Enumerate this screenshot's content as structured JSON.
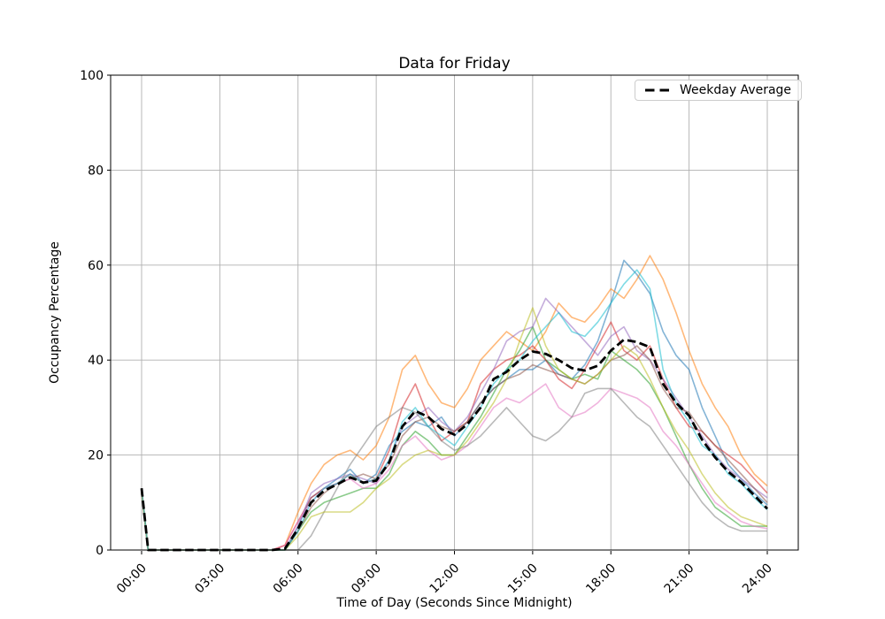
{
  "figure": {
    "title": "Data for Friday",
    "background": "#ffffff"
  },
  "legend": {
    "label": "Weekday Average",
    "position": "upper right"
  },
  "chart_data": {
    "type": "line",
    "title": "Data for Friday",
    "xlabel": "Time of Day (Seconds Since Midnight)",
    "ylabel": "Occupancy Percentage",
    "grid": true,
    "x_hours": [
      0,
      0.25,
      0.5,
      1,
      1.5,
      2,
      2.5,
      3,
      3.5,
      4,
      4.5,
      5,
      5.5,
      6,
      6.5,
      7,
      7.5,
      8,
      8.5,
      9,
      9.5,
      10,
      10.5,
      11,
      11.5,
      12,
      12.5,
      13,
      13.5,
      14,
      14.5,
      15,
      15.5,
      16,
      16.5,
      17,
      17.5,
      18,
      18.5,
      19,
      19.5,
      20,
      20.5,
      21,
      21.5,
      22,
      22.5,
      23,
      23.5,
      24
    ],
    "x_axis": {
      "label": "Time of Day (Seconds Since Midnight)",
      "tick_hours": [
        0,
        3,
        6,
        9,
        12,
        15,
        18,
        21,
        24
      ],
      "tick_labels": [
        "00:00",
        "03:00",
        "06:00",
        "09:00",
        "12:00",
        "15:00",
        "18:00",
        "21:00",
        "24:00"
      ]
    },
    "y_axis": {
      "label": "Occupancy Percentage",
      "range": [
        0,
        100
      ],
      "ticks": [
        0,
        20,
        40,
        60,
        80,
        100
      ],
      "tick_labels": [
        "0",
        "20",
        "40",
        "60",
        "80",
        "100"
      ]
    },
    "style": {
      "grid_color": "#b0b0b0",
      "spine_color": "#000000",
      "series_opacity": 0.55,
      "series_width": 1.6,
      "average_color": "#000000",
      "average_width": 2.8,
      "average_dash": "9.5 4.5"
    },
    "series": [
      {
        "id": "blue",
        "color": "#1f77b4",
        "values": [
          12,
          0,
          0,
          0,
          0,
          0,
          0,
          0,
          0,
          0,
          0,
          0,
          0,
          5,
          11,
          13,
          15,
          17,
          14,
          16,
          22,
          25,
          27,
          26,
          28,
          24,
          27,
          31,
          34,
          36,
          38,
          38,
          40,
          37,
          36,
          39,
          44,
          52,
          61,
          58,
          54,
          46,
          41,
          38,
          30,
          24,
          18,
          15,
          12,
          9.5
        ]
      },
      {
        "id": "orange",
        "color": "#ff7f0e",
        "values": [
          13,
          0,
          0,
          0,
          0,
          0,
          0,
          0,
          0,
          0,
          0,
          0,
          1,
          8,
          14,
          18,
          20,
          21,
          19,
          22,
          28,
          38,
          41,
          35,
          31,
          30,
          34,
          40,
          43,
          46,
          44,
          42,
          46,
          52,
          49,
          48,
          51,
          55,
          53,
          57,
          62,
          57,
          50,
          42,
          35,
          30,
          26,
          20,
          16,
          13.5
        ]
      },
      {
        "id": "green",
        "color": "#2ca02c",
        "values": [
          12,
          0,
          0,
          0,
          0,
          0,
          0,
          0,
          0,
          0,
          0,
          0,
          0,
          4,
          8,
          10,
          11,
          12,
          13,
          13,
          16,
          22,
          25,
          23,
          20,
          20,
          24,
          28,
          33,
          38,
          42,
          47,
          40,
          38,
          36,
          37,
          36,
          42,
          40,
          38,
          35,
          30,
          24,
          18,
          13,
          9,
          7,
          5,
          5,
          5
        ]
      },
      {
        "id": "red",
        "color": "#d62728",
        "values": [
          13,
          0,
          0,
          0,
          0,
          0,
          0,
          0,
          0,
          0,
          0,
          0,
          1,
          6,
          11,
          13,
          14,
          16,
          14,
          15,
          21,
          30,
          35,
          28,
          23,
          25,
          27,
          35,
          38,
          40,
          41,
          43,
          40,
          36,
          34,
          38,
          43,
          48,
          42,
          40,
          43,
          36,
          30,
          26,
          25,
          22,
          20,
          18,
          15,
          12
        ]
      },
      {
        "id": "purple",
        "color": "#9467bd",
        "values": [
          12,
          0,
          0,
          0,
          0,
          0,
          0,
          0,
          0,
          0,
          0,
          0,
          0,
          5,
          12,
          14,
          15,
          16,
          15,
          14,
          19,
          26,
          28,
          30,
          27,
          25,
          28,
          33,
          38,
          44,
          46,
          47,
          53,
          50,
          47,
          44,
          41,
          45,
          47,
          42,
          40,
          36,
          32,
          28,
          24,
          20,
          17,
          15,
          13,
          11
        ]
      },
      {
        "id": "brown",
        "color": "#8c564b",
        "values": [
          12,
          0,
          0,
          0,
          0,
          0,
          0,
          0,
          0,
          0,
          0,
          0,
          0,
          4,
          9,
          12,
          14,
          15,
          16,
          15,
          18,
          24,
          27,
          28,
          26,
          25,
          27,
          31,
          34,
          36,
          37,
          39,
          38,
          37,
          36,
          35,
          37,
          40,
          41,
          43,
          40,
          34,
          30,
          29,
          25,
          22,
          19,
          16,
          13,
          10
        ]
      },
      {
        "id": "pink",
        "color": "#e377c2",
        "values": [
          12,
          0,
          0,
          0,
          0,
          0,
          0,
          0,
          0,
          0,
          0,
          0,
          1,
          6,
          10,
          13,
          14,
          15,
          13,
          14,
          17,
          22,
          24,
          21,
          19,
          20,
          22,
          26,
          30,
          32,
          31,
          33,
          35,
          30,
          28,
          29,
          31,
          34,
          33,
          32,
          30,
          25,
          22,
          18,
          14,
          10,
          8,
          6,
          5,
          4.5
        ]
      },
      {
        "id": "gray",
        "color": "#7f7f7f",
        "values": [
          13,
          0,
          0,
          0,
          0,
          0,
          0,
          0,
          0,
          0,
          0,
          0,
          0,
          0,
          3,
          8,
          13,
          18,
          22,
          26,
          28,
          30,
          29,
          26,
          23,
          21,
          22,
          24,
          27,
          30,
          27,
          24,
          23,
          25,
          28,
          33,
          34,
          34,
          31,
          28,
          26,
          22,
          18,
          14,
          10,
          7,
          5,
          4,
          4,
          4
        ]
      },
      {
        "id": "olive",
        "color": "#bcbd22",
        "values": [
          12,
          0,
          0,
          0,
          0,
          0,
          0,
          0,
          0,
          0,
          0,
          0,
          0,
          3,
          7,
          8,
          8,
          8,
          10,
          13,
          15,
          18,
          20,
          21,
          20,
          20,
          23,
          27,
          31,
          36,
          44,
          51,
          43,
          38,
          36,
          35,
          37,
          40,
          43,
          41,
          36,
          30,
          25,
          21,
          16,
          12,
          9,
          7,
          6,
          5
        ]
      },
      {
        "id": "cyan",
        "color": "#17becf",
        "values": [
          13,
          0,
          0,
          0,
          0,
          0,
          0,
          0,
          0,
          0,
          0,
          0,
          0,
          4,
          10,
          13,
          14,
          16,
          14,
          15,
          19,
          27,
          30,
          26,
          24,
          22,
          26,
          30,
          35,
          38,
          40,
          44,
          47,
          50,
          46,
          45,
          48,
          52,
          56,
          59,
          55,
          38,
          31,
          27,
          22,
          20,
          16,
          14,
          11,
          8.5
        ]
      }
    ],
    "average": {
      "name": "Weekday Average",
      "color": "#000000",
      "dashed": true,
      "values": [
        13,
        0,
        0,
        0,
        0,
        0,
        0,
        0,
        0,
        0,
        0,
        0,
        0.3,
        4.5,
        10,
        12.5,
        13.8,
        15.3,
        14.2,
        14.6,
        18.5,
        26,
        29.3,
        28,
        25.5,
        24.3,
        26.5,
        30,
        36,
        37.5,
        40,
        41.8,
        41.3,
        40,
        38.3,
        37.8,
        38.8,
        42,
        44.3,
        43.8,
        42.7,
        35,
        31,
        28.3,
        23.2,
        19.5,
        16.5,
        14.3,
        11.5,
        8.7
      ]
    }
  }
}
